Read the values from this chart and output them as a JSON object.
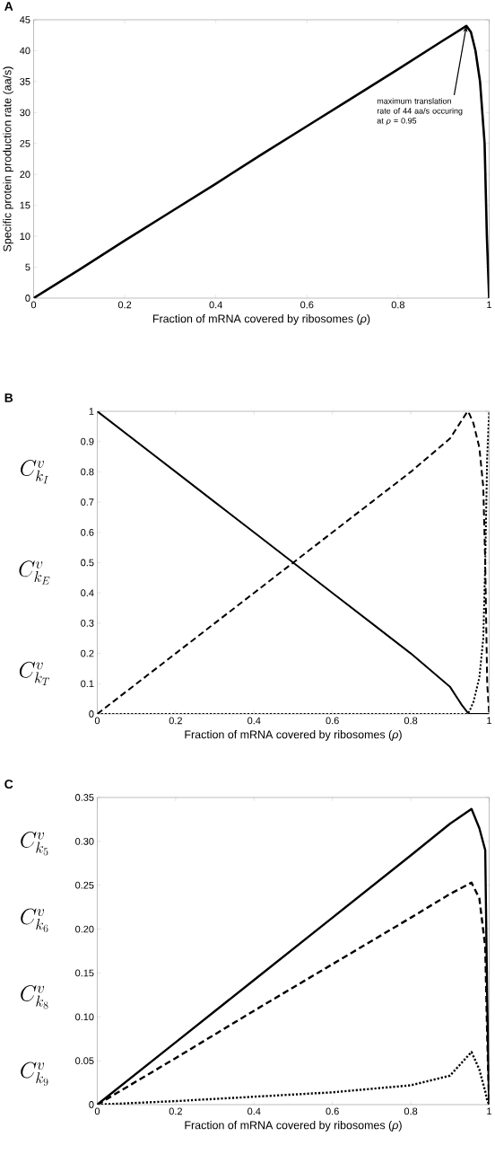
{
  "chart_data": [
    {
      "type": "line",
      "title": "A",
      "xlabel": "Fraction of mRNA covered by ribosomes (*ρ*)",
      "ylabel": "Specific protein production rate (aa/s)",
      "x": [
        0,
        0.1,
        0.2,
        0.3,
        0.4,
        0.5,
        0.6,
        0.7,
        0.8,
        0.9,
        0.95,
        0.96,
        0.97,
        0.98,
        0.99,
        0.995,
        1
      ],
      "series": [
        {
          "color": "#000000",
          "line_style": "solid",
          "values": [
            0,
            4.6,
            9.3,
            13.9,
            18.5,
            23.2,
            27.8,
            32.4,
            37.0,
            41.7,
            44,
            43,
            40,
            35,
            25,
            10,
            0
          ]
        }
      ],
      "annotations": [
        {
          "text": "maximum translation rate of 44 aa/s occuring at *ρ* = 0.95",
          "x": 0.95,
          "y": 44
        }
      ],
      "xlim": [
        0,
        1
      ],
      "ylim": [
        0,
        45
      ],
      "xticks": [
        0,
        0.2,
        0.4,
        0.6,
        0.8,
        1
      ],
      "yticks": [
        0,
        5,
        10,
        15,
        20,
        25,
        30,
        35,
        40,
        45
      ],
      "grid": false,
      "marker": "none"
    },
    {
      "type": "line",
      "title": "B",
      "xlabel": "Fraction of mRNA covered by ribosomes (*ρ*)",
      "x": [
        0,
        0.1,
        0.2,
        0.3,
        0.4,
        0.5,
        0.6,
        0.7,
        0.8,
        0.9,
        0.93,
        0.945,
        0.95,
        0.96,
        0.975,
        0.985,
        0.99,
        0.995,
        1
      ],
      "series": [
        {
          "color": "#000000",
          "line_style": "solid",
          "values": [
            1,
            0.9,
            0.8,
            0.7,
            0.6,
            0.5,
            0.4,
            0.3,
            0.2,
            0.09,
            0.03,
            0.005,
            0,
            0,
            0,
            0,
            0,
            0,
            0
          ]
        },
        {
          "color": "#000000",
          "line_style": "dashed",
          "values": [
            0,
            0.1,
            0.2,
            0.3,
            0.4,
            0.5,
            0.6,
            0.7,
            0.8,
            0.91,
            0.97,
            1,
            0.99,
            0.96,
            0.88,
            0.75,
            0.5,
            0.1,
            0
          ]
        },
        {
          "color": "#000000",
          "line_style": "dotted",
          "values": [
            0,
            0,
            0,
            0,
            0,
            0,
            0,
            0,
            0,
            0,
            0,
            0,
            0.01,
            0.04,
            0.12,
            0.25,
            0.5,
            0.85,
            1
          ]
        }
      ],
      "annotations": [
        "C^{v}_{k_{I}}",
        "C^{v}_{k_{E}}",
        "C^{v}_{k_{T}}"
      ],
      "xlim": [
        0,
        1
      ],
      "ylim": [
        0,
        1
      ],
      "xticks": [
        0,
        0.2,
        0.4,
        0.6,
        0.8,
        1
      ],
      "yticks": [
        0,
        0.1,
        0.2,
        0.3,
        0.4,
        0.5,
        0.6,
        0.7,
        0.8,
        0.9,
        1
      ],
      "grid": false,
      "marker": "none"
    },
    {
      "type": "line",
      "title": "C",
      "xlabel": "Fraction of mRNA covered by ribosomes (*ρ*)",
      "x": [
        0,
        0.2,
        0.4,
        0.6,
        0.8,
        0.9,
        0.955,
        0.975,
        0.99,
        0.995,
        1
      ],
      "series": [
        {
          "color": "#000000",
          "line_style": "solid",
          "values": [
            0,
            0.071,
            0.142,
            0.213,
            0.284,
            0.32,
            0.337,
            0.315,
            0.29,
            0.12,
            0
          ]
        },
        {
          "color": "#000000",
          "line_style": "dashed",
          "values": [
            0,
            0.053,
            0.107,
            0.16,
            0.213,
            0.24,
            0.253,
            0.235,
            0.18,
            0.08,
            0
          ]
        },
        {
          "color": "#000000",
          "line_style": "dotted",
          "values": [
            0,
            0.004,
            0.009,
            0.014,
            0.022,
            0.033,
            0.06,
            0.04,
            0.015,
            0.005,
            0
          ]
        }
      ],
      "annotations": [
        "C^{v}_{k_{5}}",
        "C^{v}_{k_{6}}",
        "C^{v}_{k_{8}}",
        "C^{v}_{k_{9}}"
      ],
      "xlim": [
        0,
        1
      ],
      "ylim": [
        0,
        0.35
      ],
      "xticks": [
        0,
        0.2,
        0.4,
        0.6,
        0.8,
        1
      ],
      "yticks": [
        0,
        {
          "value": 0.05,
          "label": "0.05"
        },
        {
          "value": 0.1,
          "label": "0.10"
        },
        0.15,
        {
          "value": 0.2,
          "label": "0.20"
        },
        0.25,
        {
          "value": 0.3,
          "label": "0.30"
        },
        0.35
      ],
      "grid": false,
      "marker": "none"
    }
  ]
}
